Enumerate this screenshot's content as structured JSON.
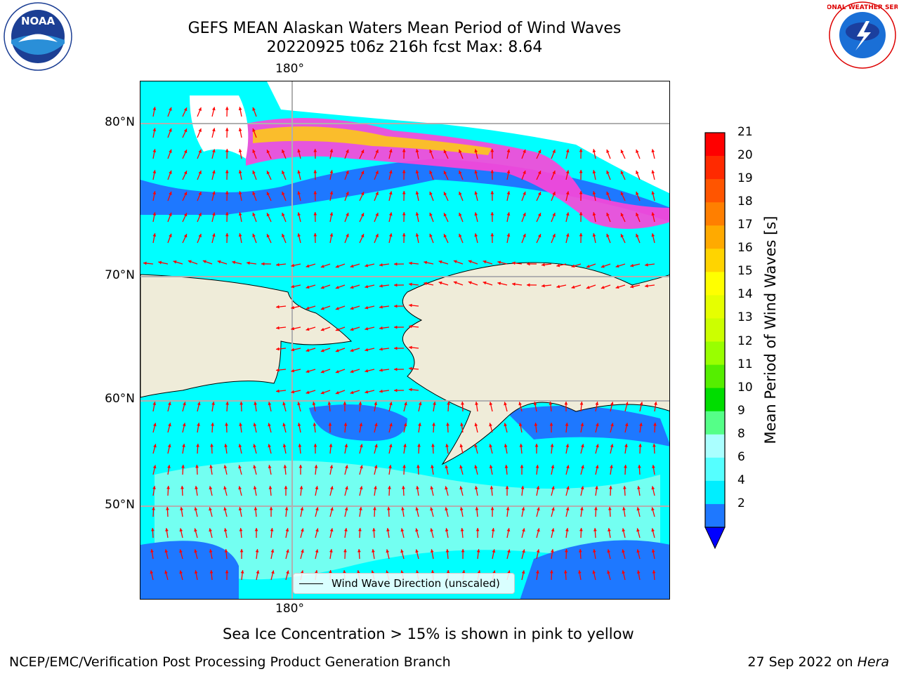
{
  "header": {
    "title_line1": "GEFS MEAN Alaskan Waters Mean Period of Wind Waves",
    "title_line2": "20220925 t06z 216h fcst   Max: 8.64"
  },
  "logos": {
    "left": "NOAA",
    "right": "NATIONAL WEATHER SERVICE"
  },
  "map": {
    "lat_labels": [
      "80°N",
      "70°N",
      "60°N",
      "50°N"
    ],
    "lon_label_top": "180°",
    "lon_label_bottom": "180°",
    "legend_label": "Wind Wave Direction (unscaled)",
    "ocean_colors": {
      "light": "#00ffff",
      "mid": "#7ffff0",
      "deep": "#1e78ff",
      "land": "#efecd9",
      "ice_pink": "#ff44d8",
      "ice_yellow": "#ffd700",
      "arrow": "#ff0000"
    }
  },
  "colorbar": {
    "label": "Mean Period of Wind Waves [s]",
    "ticks": [
      "21",
      "20",
      "19",
      "18",
      "17",
      "16",
      "15",
      "14",
      "13",
      "12",
      "11",
      "10",
      "9",
      "8",
      "6",
      "4",
      "2"
    ],
    "colors": [
      "#ff0000",
      "#ff2a00",
      "#ff5500",
      "#ff7f00",
      "#ffaa00",
      "#ffd400",
      "#ffff00",
      "#e6ff00",
      "#ccff00",
      "#99ff00",
      "#55ee00",
      "#00dd00",
      "#55ff88",
      "#aaffff",
      "#55ffff",
      "#00eeff",
      "#1e78ff",
      "#0000ff"
    ]
  },
  "note": "Sea Ice Concentration > 15% is shown in pink to yellow",
  "footer": {
    "left": "NCEP/EMC/Verification Post Processing Product Generation Branch",
    "right_date": "27 Sep 2022 on ",
    "right_host": "Hera"
  }
}
